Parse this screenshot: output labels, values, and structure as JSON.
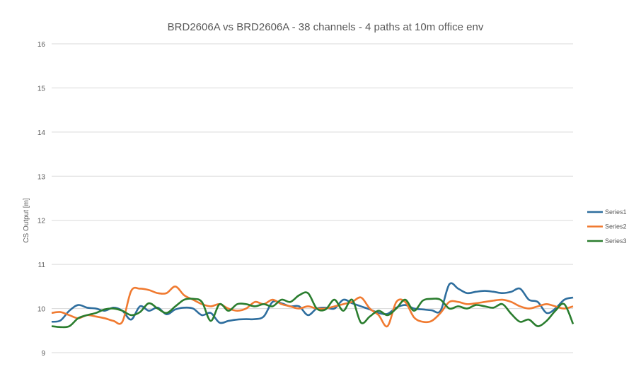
{
  "chart_data": {
    "type": "line",
    "title": "BRD2606A vs BRD2606A - 38 channels - 4 paths at 10m office env",
    "xlabel": "",
    "ylabel": "CS Output [m]",
    "ylim": [
      9,
      16
    ],
    "yticks": [
      "9",
      "10",
      "11",
      "12",
      "13",
      "14",
      "15",
      "16"
    ],
    "grid": true,
    "legend": "right",
    "series": [
      {
        "name": "Series1",
        "color": "#2e6e9e",
        "values": [
          9.7,
          9.73,
          9.95,
          10.08,
          10.02,
          10.0,
          9.95,
          10.02,
          9.95,
          9.75,
          10.05,
          9.95,
          10.02,
          9.87,
          9.98,
          10.02,
          10.0,
          9.85,
          9.9,
          9.68,
          9.72,
          9.75,
          9.76,
          9.76,
          9.82,
          10.15,
          10.12,
          10.05,
          10.05,
          9.85,
          10.0,
          10.02,
          10.0,
          10.2,
          10.12,
          10.05,
          9.98,
          9.9,
          9.88,
          10.02,
          10.08,
          10.0,
          9.98,
          9.96,
          9.95,
          10.55,
          10.45,
          10.35,
          10.38,
          10.4,
          10.38,
          10.35,
          10.38,
          10.45,
          10.2,
          10.15,
          9.9,
          10.0,
          10.2,
          10.25
        ]
      },
      {
        "name": "Series2",
        "color": "#f07a30",
        "values": [
          9.9,
          9.92,
          9.85,
          9.78,
          9.85,
          9.82,
          9.78,
          9.72,
          9.7,
          10.4,
          10.45,
          10.42,
          10.35,
          10.35,
          10.5,
          10.3,
          10.2,
          10.1,
          10.05,
          10.1,
          10.0,
          9.95,
          10.0,
          10.15,
          10.1,
          10.2,
          10.1,
          10.05,
          10.0,
          10.05,
          10.0,
          10.0,
          10.05,
          10.1,
          10.15,
          10.25,
          10.0,
          9.85,
          9.6,
          10.15,
          10.15,
          9.8,
          9.7,
          9.72,
          9.9,
          10.15,
          10.15,
          10.1,
          10.12,
          10.15,
          10.18,
          10.2,
          10.15,
          10.05,
          10.0,
          10.05,
          10.1,
          10.05,
          10.0,
          10.05
        ]
      },
      {
        "name": "Series3",
        "color": "#2a7d2e",
        "values": [
          9.6,
          9.58,
          9.6,
          9.78,
          9.85,
          9.9,
          9.98,
          10.0,
          9.95,
          9.85,
          9.92,
          10.12,
          10.0,
          9.9,
          10.05,
          10.2,
          10.22,
          10.15,
          9.72,
          10.1,
          9.95,
          10.1,
          10.1,
          10.05,
          10.1,
          10.05,
          10.2,
          10.15,
          10.3,
          10.35,
          10.0,
          9.98,
          10.2,
          9.95,
          10.2,
          9.68,
          9.82,
          9.95,
          9.85,
          10.0,
          10.2,
          9.95,
          10.18,
          10.22,
          10.2,
          10.0,
          10.05,
          10.0,
          10.08,
          10.05,
          10.02,
          10.1,
          9.88,
          9.7,
          9.75,
          9.6,
          9.72,
          9.95,
          10.1,
          9.65
        ]
      }
    ]
  }
}
